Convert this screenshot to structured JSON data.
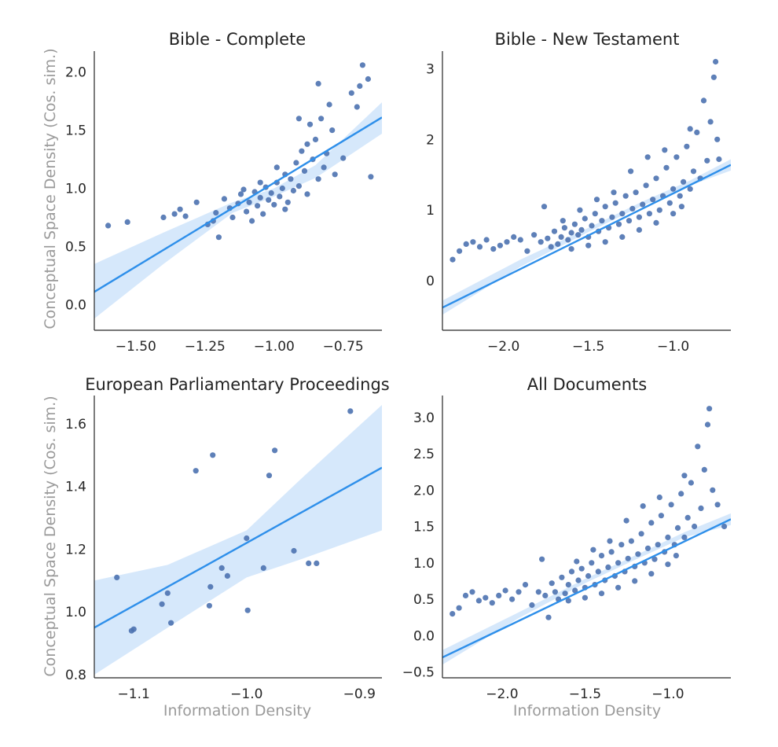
{
  "figure": {
    "ylabel": "Conceptual Space Density (Cos. sim.)",
    "xlabel": "Information Density",
    "colors": {
      "points": "#4c72b0",
      "fit_line": "#2e8fea",
      "ci_band": "#cfe4fa",
      "text": "#262626",
      "axis_label": "#9a9a9a"
    }
  },
  "chart_data": [
    {
      "type": "scatter",
      "title": "Bible - Complete",
      "xlabel": "",
      "ylabel": "Conceptual Space Density (Cos. sim.)",
      "xlim": [
        -1.65,
        -0.61
      ],
      "ylim": [
        -0.22,
        2.18
      ],
      "xticks": [
        -1.5,
        -1.25,
        -1.0,
        -0.75
      ],
      "xtick_labels": [
        "−1.50",
        "−1.25",
        "−1.00",
        "−0.75"
      ],
      "yticks": [
        0.0,
        0.5,
        1.0,
        1.5,
        2.0
      ],
      "ytick_labels": [
        "0.0",
        "0.5",
        "1.0",
        "1.5",
        "2.0"
      ],
      "grid": false,
      "regression": {
        "line": [
          [
            -1.65,
            0.11
          ],
          [
            -0.61,
            1.61
          ]
        ],
        "ci_upper": [
          [
            -1.65,
            0.35
          ],
          [
            -1.4,
            0.62
          ],
          [
            -1.15,
            0.88
          ],
          [
            -1.0,
            1.0
          ],
          [
            -0.85,
            1.2
          ],
          [
            -0.61,
            1.74
          ]
        ],
        "ci_lower": [
          [
            -1.65,
            -0.12
          ],
          [
            -1.4,
            0.35
          ],
          [
            -1.15,
            0.79
          ],
          [
            -1.0,
            0.93
          ],
          [
            -0.85,
            1.09
          ],
          [
            -0.61,
            1.47
          ]
        ]
      },
      "points": [
        [
          -1.6,
          0.68
        ],
        [
          -1.53,
          0.71
        ],
        [
          -1.4,
          0.75
        ],
        [
          -1.36,
          0.78
        ],
        [
          -1.34,
          0.82
        ],
        [
          -1.32,
          0.76
        ],
        [
          -1.28,
          0.88
        ],
        [
          -1.24,
          0.69
        ],
        [
          -1.22,
          0.72
        ],
        [
          -1.21,
          0.79
        ],
        [
          -1.2,
          0.58
        ],
        [
          -1.18,
          0.91
        ],
        [
          -1.16,
          0.83
        ],
        [
          -1.15,
          0.75
        ],
        [
          -1.13,
          0.87
        ],
        [
          -1.12,
          0.95
        ],
        [
          -1.1,
          0.8
        ],
        [
          -1.09,
          0.88
        ],
        [
          -1.08,
          0.72
        ],
        [
          -1.07,
          0.97
        ],
        [
          -1.06,
          0.85
        ],
        [
          -1.05,
          0.92
        ],
        [
          -1.04,
          0.78
        ],
        [
          -1.03,
          1.01
        ],
        [
          -1.02,
          0.9
        ],
        [
          -1.01,
          0.96
        ],
        [
          -1.0,
          0.86
        ],
        [
          -0.99,
          1.05
        ],
        [
          -0.98,
          0.93
        ],
        [
          -0.97,
          1.0
        ],
        [
          -0.96,
          1.12
        ],
        [
          -0.95,
          0.88
        ],
        [
          -0.94,
          1.08
        ],
        [
          -0.93,
          0.98
        ],
        [
          -0.92,
          1.22
        ],
        [
          -0.91,
          1.02
        ],
        [
          -0.9,
          1.32
        ],
        [
          -0.89,
          1.15
        ],
        [
          -0.88,
          0.95
        ],
        [
          -0.87,
          1.55
        ],
        [
          -0.86,
          1.25
        ],
        [
          -0.85,
          1.42
        ],
        [
          -0.84,
          1.08
        ],
        [
          -0.83,
          1.6
        ],
        [
          -0.82,
          1.18
        ],
        [
          -0.81,
          1.3
        ],
        [
          -0.8,
          1.72
        ],
        [
          -0.79,
          1.5
        ],
        [
          -0.78,
          1.12
        ],
        [
          -0.75,
          1.26
        ],
        [
          -0.72,
          1.82
        ],
        [
          -0.69,
          1.88
        ],
        [
          -0.68,
          2.06
        ],
        [
          -0.66,
          1.94
        ],
        [
          -0.7,
          1.7
        ],
        [
          -0.65,
          1.1
        ],
        [
          -0.84,
          1.9
        ],
        [
          -0.88,
          1.38
        ],
        [
          -0.91,
          1.6
        ],
        [
          -1.05,
          1.05
        ],
        [
          -1.11,
          0.99
        ],
        [
          -0.96,
          0.82
        ],
        [
          -0.99,
          1.18
        ]
      ]
    },
    {
      "type": "scatter",
      "title": "Bible - New Testament",
      "xlabel": "",
      "ylabel": "",
      "xlim": [
        -2.36,
        -0.66
      ],
      "ylim": [
        -0.7,
        3.25
      ],
      "xticks": [
        -2.0,
        -1.5,
        -1.0
      ],
      "xtick_labels": [
        "−2.0",
        "−1.5",
        "−1.0"
      ],
      "yticks": [
        0,
        1,
        2,
        3
      ],
      "ytick_labels": [
        "0",
        "1",
        "2",
        "3"
      ],
      "grid": false,
      "regression": {
        "line": [
          [
            -2.36,
            -0.38
          ],
          [
            -0.66,
            1.64
          ]
        ],
        "ci_upper": [
          [
            -2.36,
            -0.28
          ],
          [
            -1.9,
            0.3
          ],
          [
            -1.5,
            0.75
          ],
          [
            -1.2,
            1.1
          ],
          [
            -0.9,
            1.42
          ],
          [
            -0.66,
            1.72
          ]
        ],
        "ci_lower": [
          [
            -2.36,
            -0.48
          ],
          [
            -1.9,
            0.2
          ],
          [
            -1.5,
            0.69
          ],
          [
            -1.2,
            1.04
          ],
          [
            -0.9,
            1.35
          ],
          [
            -0.66,
            1.56
          ]
        ]
      },
      "points": [
        [
          -2.3,
          0.3
        ],
        [
          -2.26,
          0.42
        ],
        [
          -2.22,
          0.52
        ],
        [
          -2.18,
          0.55
        ],
        [
          -2.14,
          0.48
        ],
        [
          -2.1,
          0.58
        ],
        [
          -2.06,
          0.45
        ],
        [
          -2.02,
          0.5
        ],
        [
          -1.98,
          0.55
        ],
        [
          -1.94,
          0.62
        ],
        [
          -1.9,
          0.58
        ],
        [
          -1.86,
          0.42
        ],
        [
          -1.82,
          0.65
        ],
        [
          -1.78,
          0.55
        ],
        [
          -1.76,
          1.05
        ],
        [
          -1.74,
          0.6
        ],
        [
          -1.72,
          0.48
        ],
        [
          -1.7,
          0.7
        ],
        [
          -1.68,
          0.52
        ],
        [
          -1.66,
          0.62
        ],
        [
          -1.64,
          0.75
        ],
        [
          -1.62,
          0.58
        ],
        [
          -1.6,
          0.68
        ],
        [
          -1.58,
          0.8
        ],
        [
          -1.56,
          0.65
        ],
        [
          -1.54,
          0.72
        ],
        [
          -1.52,
          0.88
        ],
        [
          -1.5,
          0.62
        ],
        [
          -1.48,
          0.78
        ],
        [
          -1.46,
          0.95
        ],
        [
          -1.44,
          0.7
        ],
        [
          -1.42,
          0.85
        ],
        [
          -1.4,
          1.05
        ],
        [
          -1.38,
          0.75
        ],
        [
          -1.36,
          0.9
        ],
        [
          -1.34,
          1.1
        ],
        [
          -1.32,
          0.8
        ],
        [
          -1.3,
          0.95
        ],
        [
          -1.28,
          1.2
        ],
        [
          -1.26,
          0.85
        ],
        [
          -1.24,
          1.02
        ],
        [
          -1.22,
          1.25
        ],
        [
          -1.2,
          0.9
        ],
        [
          -1.18,
          1.08
        ],
        [
          -1.16,
          1.35
        ],
        [
          -1.14,
          0.95
        ],
        [
          -1.12,
          1.15
        ],
        [
          -1.1,
          1.45
        ],
        [
          -1.08,
          1.0
        ],
        [
          -1.06,
          1.2
        ],
        [
          -1.04,
          1.6
        ],
        [
          -1.02,
          1.1
        ],
        [
          -1.0,
          1.3
        ],
        [
          -0.98,
          1.75
        ],
        [
          -0.96,
          1.2
        ],
        [
          -0.94,
          1.4
        ],
        [
          -0.92,
          1.9
        ],
        [
          -0.9,
          1.3
        ],
        [
          -0.88,
          1.55
        ],
        [
          -0.86,
          2.1
        ],
        [
          -0.84,
          1.45
        ],
        [
          -0.82,
          2.55
        ],
        [
          -0.8,
          1.7
        ],
        [
          -0.78,
          2.25
        ],
        [
          -0.76,
          2.88
        ],
        [
          -0.75,
          3.1
        ],
        [
          -0.74,
          2.0
        ],
        [
          -0.73,
          1.72
        ],
        [
          -1.4,
          0.55
        ],
        [
          -1.3,
          0.62
        ],
        [
          -1.2,
          0.72
        ],
        [
          -1.1,
          0.82
        ],
        [
          -1.0,
          0.95
        ],
        [
          -0.95,
          1.05
        ],
        [
          -1.5,
          0.5
        ],
        [
          -1.6,
          0.45
        ],
        [
          -1.25,
          1.55
        ],
        [
          -1.15,
          1.75
        ],
        [
          -1.05,
          1.85
        ],
        [
          -1.35,
          1.25
        ],
        [
          -1.45,
          1.15
        ],
        [
          -1.55,
          1.0
        ],
        [
          -1.65,
          0.85
        ],
        [
          -0.9,
          2.15
        ]
      ]
    },
    {
      "type": "scatter",
      "title": "European Parliamentary Proceedings",
      "xlabel": "Information Density",
      "ylabel": "Conceptual Space Density (Cos. sim.)",
      "xlim": [
        -1.135,
        -0.88
      ],
      "ylim": [
        0.79,
        1.69
      ],
      "xticks": [
        -1.1,
        -1.0,
        -0.9
      ],
      "xtick_labels": [
        "−1.1",
        "−1.0",
        "−0.9"
      ],
      "yticks": [
        0.8,
        1.0,
        1.2,
        1.4,
        1.6
      ],
      "ytick_labels": [
        "0.8",
        "1.0",
        "1.2",
        "1.4",
        "1.6"
      ],
      "grid": false,
      "regression": {
        "line": [
          [
            -1.135,
            0.95
          ],
          [
            -0.88,
            1.46
          ]
        ],
        "ci_upper": [
          [
            -1.135,
            1.1
          ],
          [
            -1.07,
            1.15
          ],
          [
            -1.0,
            1.26
          ],
          [
            -0.95,
            1.43
          ],
          [
            -0.88,
            1.66
          ]
        ],
        "ci_lower": [
          [
            -1.135,
            0.8
          ],
          [
            -1.07,
            0.95
          ],
          [
            -1.0,
            1.11
          ],
          [
            -0.95,
            1.17
          ],
          [
            -0.88,
            1.26
          ]
        ]
      },
      "points": [
        [
          -1.115,
          1.11
        ],
        [
          -1.102,
          0.94
        ],
        [
          -1.1,
          0.945
        ],
        [
          -1.075,
          1.025
        ],
        [
          -1.07,
          1.06
        ],
        [
          -1.067,
          0.965
        ],
        [
          -1.045,
          1.45
        ],
        [
          -1.033,
          1.02
        ],
        [
          -1.032,
          1.08
        ],
        [
          -1.03,
          1.5
        ],
        [
          -1.022,
          1.14
        ],
        [
          -1.017,
          1.115
        ],
        [
          -1.0,
          1.235
        ],
        [
          -0.999,
          1.005
        ],
        [
          -0.985,
          1.14
        ],
        [
          -0.98,
          1.435
        ],
        [
          -0.975,
          1.515
        ],
        [
          -0.958,
          1.195
        ],
        [
          -0.945,
          1.155
        ],
        [
          -0.938,
          1.155
        ],
        [
          -0.908,
          1.64
        ]
      ]
    },
    {
      "type": "scatter",
      "title": "All Documents",
      "xlabel": "Information Density",
      "ylabel": "",
      "xlim": [
        -2.36,
        -0.62
      ],
      "ylim": [
        -0.58,
        3.3
      ],
      "xticks": [
        -2.0,
        -1.5,
        -1.0
      ],
      "xtick_labels": [
        "−2.0",
        "−1.5",
        "−1.0"
      ],
      "yticks": [
        -0.5,
        0.0,
        0.5,
        1.0,
        1.5,
        2.0,
        2.5,
        3.0
      ],
      "ytick_labels": [
        "−0.5",
        "0.0",
        "0.5",
        "1.0",
        "1.5",
        "2.0",
        "2.5",
        "3.0"
      ],
      "grid": false,
      "regression": {
        "line": [
          [
            -2.36,
            -0.3
          ],
          [
            -0.62,
            1.6
          ]
        ],
        "ci_upper": [
          [
            -2.36,
            -0.2
          ],
          [
            -1.9,
            0.32
          ],
          [
            -1.5,
            0.78
          ],
          [
            -1.2,
            1.1
          ],
          [
            -0.9,
            1.42
          ],
          [
            -0.62,
            1.68
          ]
        ],
        "ci_lower": [
          [
            -2.36,
            -0.4
          ],
          [
            -1.9,
            0.24
          ],
          [
            -1.5,
            0.72
          ],
          [
            -1.2,
            1.04
          ],
          [
            -0.9,
            1.35
          ],
          [
            -0.62,
            1.52
          ]
        ]
      },
      "points": [
        [
          -2.3,
          0.3
        ],
        [
          -2.26,
          0.38
        ],
        [
          -2.22,
          0.55
        ],
        [
          -2.18,
          0.6
        ],
        [
          -2.14,
          0.48
        ],
        [
          -2.1,
          0.52
        ],
        [
          -2.06,
          0.45
        ],
        [
          -2.02,
          0.55
        ],
        [
          -1.98,
          0.62
        ],
        [
          -1.94,
          0.5
        ],
        [
          -1.9,
          0.6
        ],
        [
          -1.86,
          0.7
        ],
        [
          -1.82,
          0.42
        ],
        [
          -1.78,
          0.6
        ],
        [
          -1.76,
          1.05
        ],
        [
          -1.74,
          0.55
        ],
        [
          -1.72,
          0.25
        ],
        [
          -1.7,
          0.72
        ],
        [
          -1.68,
          0.6
        ],
        [
          -1.66,
          0.5
        ],
        [
          -1.64,
          0.8
        ],
        [
          -1.62,
          0.58
        ],
        [
          -1.6,
          0.7
        ],
        [
          -1.58,
          0.88
        ],
        [
          -1.56,
          0.62
        ],
        [
          -1.54,
          0.76
        ],
        [
          -1.52,
          0.92
        ],
        [
          -1.5,
          0.66
        ],
        [
          -1.48,
          0.82
        ],
        [
          -1.46,
          1.0
        ],
        [
          -1.44,
          0.7
        ],
        [
          -1.42,
          0.88
        ],
        [
          -1.4,
          1.1
        ],
        [
          -1.38,
          0.76
        ],
        [
          -1.36,
          0.94
        ],
        [
          -1.34,
          1.15
        ],
        [
          -1.32,
          0.82
        ],
        [
          -1.3,
          1.0
        ],
        [
          -1.28,
          1.25
        ],
        [
          -1.26,
          0.88
        ],
        [
          -1.24,
          1.06
        ],
        [
          -1.22,
          1.3
        ],
        [
          -1.2,
          0.95
        ],
        [
          -1.18,
          1.12
        ],
        [
          -1.16,
          1.4
        ],
        [
          -1.14,
          1.0
        ],
        [
          -1.12,
          1.2
        ],
        [
          -1.1,
          1.55
        ],
        [
          -1.08,
          1.05
        ],
        [
          -1.06,
          1.25
        ],
        [
          -1.04,
          1.65
        ],
        [
          -1.02,
          1.15
        ],
        [
          -1.0,
          1.35
        ],
        [
          -0.98,
          1.8
        ],
        [
          -0.96,
          1.25
        ],
        [
          -0.94,
          1.48
        ],
        [
          -0.92,
          1.95
        ],
        [
          -0.9,
          1.35
        ],
        [
          -0.88,
          1.62
        ],
        [
          -0.86,
          2.1
        ],
        [
          -0.84,
          1.5
        ],
        [
          -0.82,
          2.6
        ],
        [
          -0.8,
          1.75
        ],
        [
          -0.78,
          2.28
        ],
        [
          -0.76,
          2.9
        ],
        [
          -0.75,
          3.12
        ],
        [
          -0.73,
          2.0
        ],
        [
          -0.7,
          1.8
        ],
        [
          -0.66,
          1.5
        ],
        [
          -1.4,
          0.58
        ],
        [
          -1.3,
          0.66
        ],
        [
          -1.2,
          0.75
        ],
        [
          -1.1,
          0.85
        ],
        [
          -1.0,
          0.98
        ],
        [
          -0.95,
          1.1
        ],
        [
          -1.5,
          0.52
        ],
        [
          -1.6,
          0.48
        ],
        [
          -1.25,
          1.58
        ],
        [
          -1.15,
          1.78
        ],
        [
          -1.05,
          1.9
        ],
        [
          -1.35,
          1.3
        ],
        [
          -1.45,
          1.18
        ],
        [
          -1.55,
          1.02
        ],
        [
          -0.9,
          2.2
        ]
      ]
    }
  ]
}
